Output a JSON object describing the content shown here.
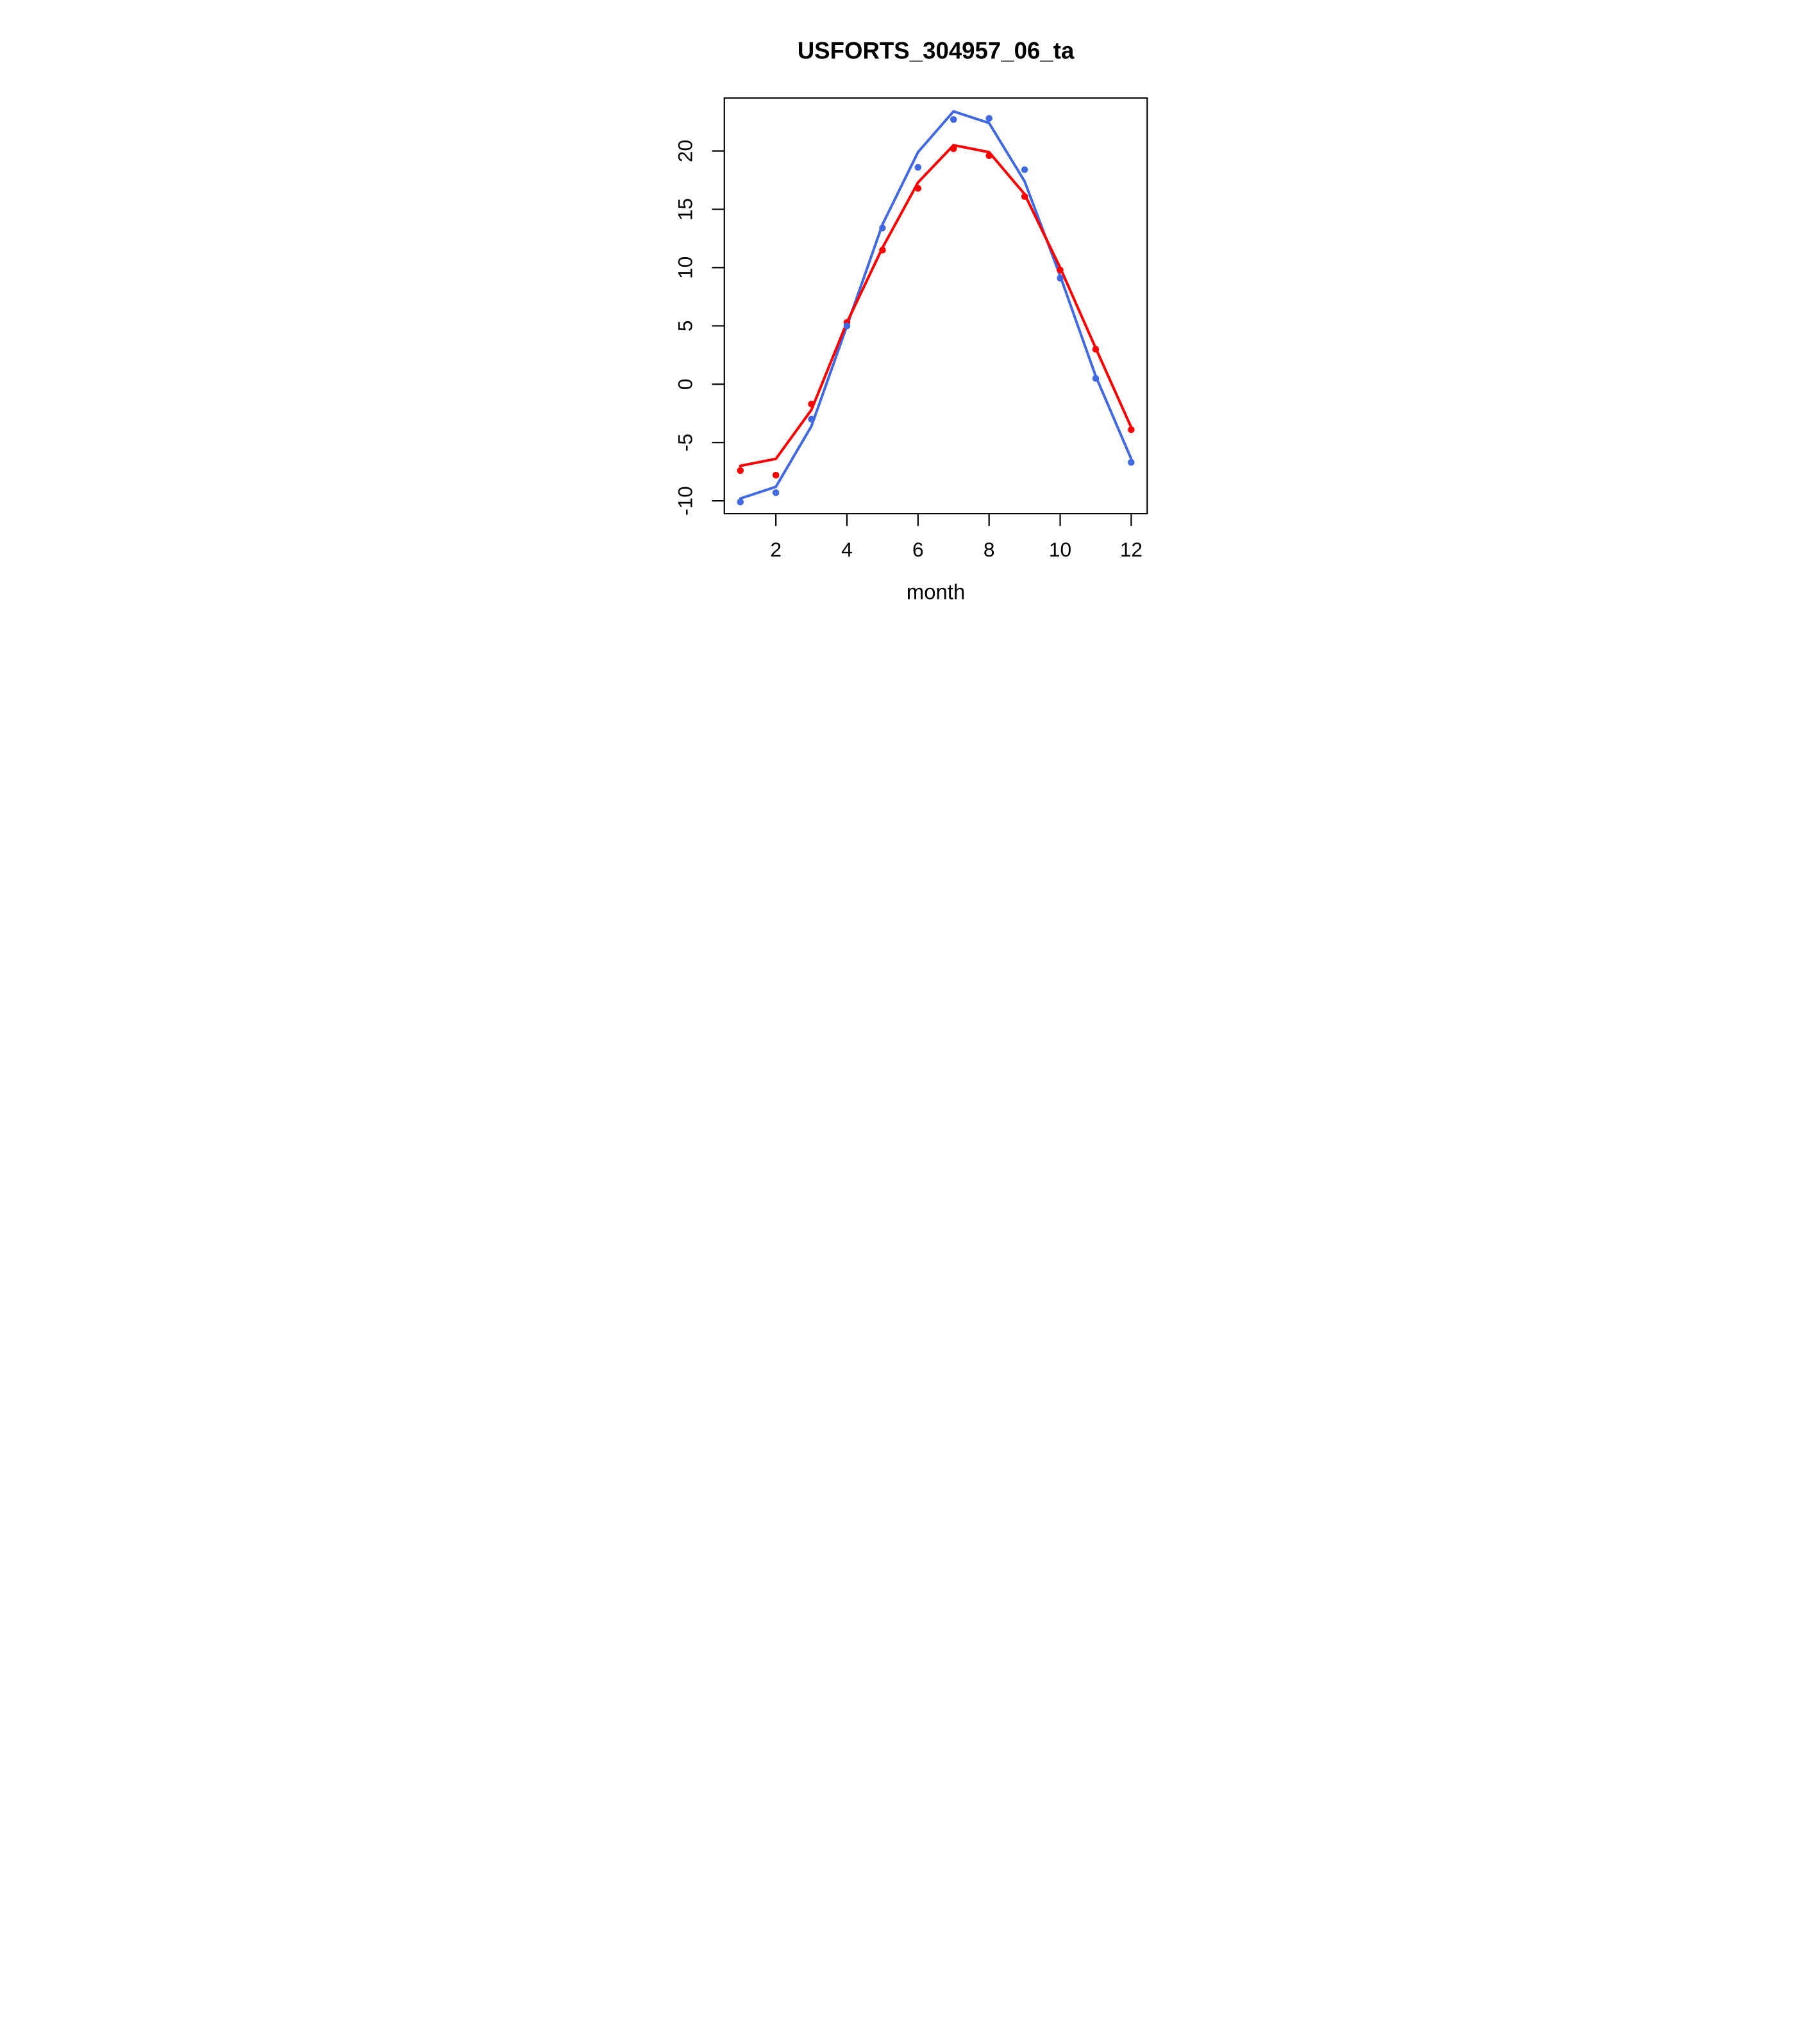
{
  "page": {
    "background": "#ffffff",
    "text_color": "#000000"
  },
  "chart_data": {
    "type": "line",
    "title": "USFORTS_304957_06_ta",
    "xlabel": "month",
    "ylabel": "",
    "x": [
      1,
      2,
      3,
      4,
      5,
      6,
      7,
      8,
      9,
      10,
      11,
      12
    ],
    "xticks": [
      2,
      4,
      6,
      8,
      10,
      12
    ],
    "yticks": [
      -10,
      -5,
      0,
      5,
      10,
      15,
      20
    ],
    "xlim": [
      0.55,
      12.45
    ],
    "ylim": [
      -11.1,
      24.55
    ],
    "grid": false,
    "legend": null,
    "colors": {
      "series_blue": "#4169e1",
      "series_red": "#ff0000",
      "axis": "#000000"
    },
    "series": [
      {
        "name": "blue-fitted-line",
        "style": "line",
        "color": "#4169e1",
        "values": [
          -9.8,
          -8.8,
          -3.6,
          5.0,
          13.7,
          19.9,
          23.4,
          22.4,
          17.4,
          9.3,
          0.7,
          -6.4
        ]
      },
      {
        "name": "red-fitted-line",
        "style": "line",
        "color": "#ff0000",
        "values": [
          -7.0,
          -6.4,
          -2.2,
          5.3,
          11.7,
          17.3,
          20.5,
          19.9,
          16.3,
          10.0,
          3.1,
          -3.7
        ]
      },
      {
        "name": "red-points",
        "style": "points",
        "color": "#ff0000",
        "values": [
          -7.4,
          -7.8,
          -1.7,
          5.3,
          11.5,
          16.8,
          20.2,
          19.6,
          16.1,
          9.8,
          3.0,
          -3.9
        ]
      },
      {
        "name": "blue-points",
        "style": "points",
        "color": "#4169e1",
        "values": [
          -10.1,
          -9.3,
          -3.0,
          5.0,
          13.4,
          18.6,
          22.7,
          22.8,
          18.4,
          9.1,
          0.5,
          -6.7
        ]
      }
    ]
  }
}
